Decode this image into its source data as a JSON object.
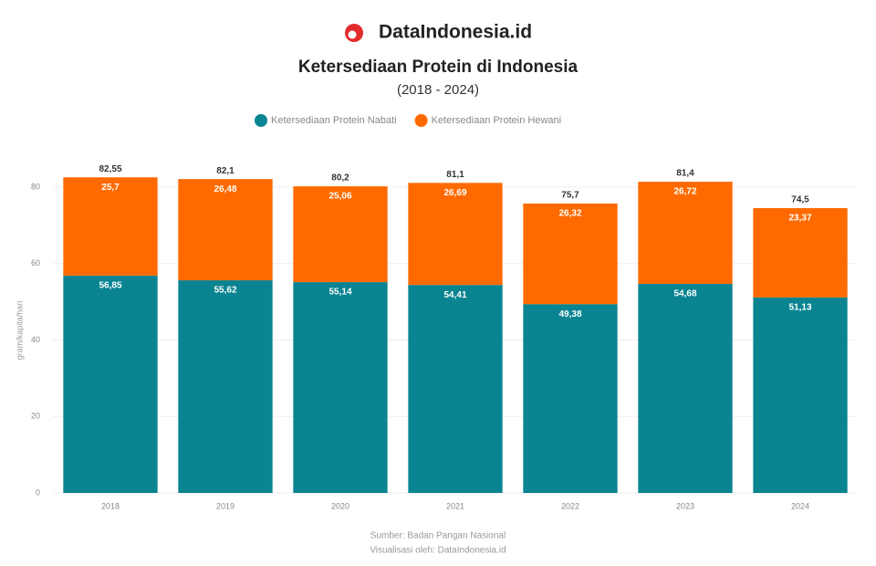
{
  "brand": "DataIndonesia.id",
  "chart_data": {
    "type": "stacked-bar",
    "title": "Ketersediaan Protein di Indonesia",
    "subtitle": "(2018 - 2024)",
    "y_label": "gram/kapita/hari",
    "categories": [
      "2018",
      "2019",
      "2020",
      "2021",
      "2022",
      "2023",
      "2024"
    ],
    "series": [
      {
        "name": "Ketersediaan Protein Nabati",
        "color": "#0a8491",
        "values": [
          56.85,
          55.62,
          55.14,
          54.41,
          49.38,
          54.68,
          51.13
        ],
        "value_labels": [
          "56,85",
          "55,62",
          "55,14",
          "54,41",
          "49,38",
          "54,68",
          "51,13"
        ]
      },
      {
        "name": "Ketersediaan Protein Hewani",
        "color": "#ff6a00",
        "values": [
          25.7,
          26.48,
          25.06,
          26.69,
          26.32,
          26.72,
          23.37
        ],
        "value_labels": [
          "25,7",
          "26,48",
          "25,06",
          "26,69",
          "26,32",
          "26,72",
          "23,37"
        ]
      }
    ],
    "totals": {
      "values": [
        82.55,
        82.1,
        80.2,
        81.1,
        75.7,
        81.4,
        74.5
      ],
      "value_labels": [
        "82,55",
        "82,1",
        "80,2",
        "81,1",
        "75,7",
        "81,4",
        "74,5"
      ]
    },
    "ylim": [
      0,
      85
    ],
    "yticks": [
      0,
      20,
      40,
      60,
      80
    ],
    "grid": true,
    "legend": "top",
    "notes": [
      "Sumber: Badan Pangan Nasional",
      "Visualisasi oleh: DataIndonesia.id"
    ]
  }
}
